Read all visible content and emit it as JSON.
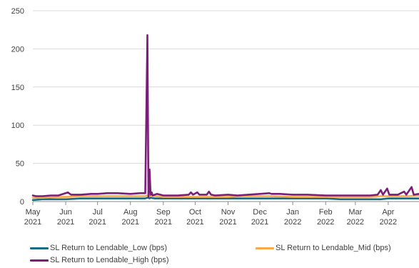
{
  "chart_data": {
    "type": "line",
    "title": "",
    "xlabel": "",
    "ylabel": "",
    "ylim": [
      0,
      250
    ],
    "yticks": [
      0,
      50,
      100,
      150,
      200,
      250
    ],
    "xlim": [
      "2021-05-01",
      "2022-04-30"
    ],
    "x_ticks": [
      {
        "date": "2021-05-01",
        "month": "May",
        "year": "2021"
      },
      {
        "date": "2021-06-01",
        "month": "Jun",
        "year": "2021"
      },
      {
        "date": "2021-07-01",
        "month": "Jul",
        "year": "2021"
      },
      {
        "date": "2021-08-01",
        "month": "Aug",
        "year": "2021"
      },
      {
        "date": "2021-09-01",
        "month": "Sep",
        "year": "2021"
      },
      {
        "date": "2021-10-01",
        "month": "Oct",
        "year": "2021"
      },
      {
        "date": "2021-11-01",
        "month": "Nov",
        "year": "2021"
      },
      {
        "date": "2021-12-01",
        "month": "Dec",
        "year": "2021"
      },
      {
        "date": "2022-01-01",
        "month": "Jan",
        "year": "2022"
      },
      {
        "date": "2022-02-01",
        "month": "Feb",
        "year": "2022"
      },
      {
        "date": "2022-03-01",
        "month": "Mar",
        "year": "2022"
      },
      {
        "date": "2022-04-01",
        "month": "Apr",
        "year": "2022"
      }
    ],
    "grid": "horizontal",
    "legend_position": "bottom",
    "series": [
      {
        "name": "SL Return to Lendable_Low (bps)",
        "color": "#1b6b80",
        "points": [
          [
            "2021-05-01",
            2
          ],
          [
            "2021-05-10",
            3
          ],
          [
            "2021-05-25",
            3
          ],
          [
            "2021-06-01",
            3
          ],
          [
            "2021-06-15",
            4
          ],
          [
            "2021-07-01",
            4
          ],
          [
            "2021-07-20",
            4
          ],
          [
            "2021-08-01",
            4
          ],
          [
            "2021-08-15",
            4
          ],
          [
            "2021-08-17",
            5
          ],
          [
            "2021-08-18",
            5
          ],
          [
            "2021-08-19",
            4
          ],
          [
            "2021-08-20",
            5
          ],
          [
            "2021-08-24",
            4
          ],
          [
            "2021-09-01",
            4
          ],
          [
            "2021-09-15",
            4
          ],
          [
            "2021-10-01",
            4
          ],
          [
            "2021-10-15",
            4
          ],
          [
            "2021-11-01",
            4
          ],
          [
            "2021-11-15",
            4
          ],
          [
            "2021-12-01",
            4
          ],
          [
            "2021-12-10",
            4
          ],
          [
            "2022-01-01",
            4
          ],
          [
            "2022-01-15",
            4
          ],
          [
            "2022-02-01",
            4
          ],
          [
            "2022-02-15",
            3
          ],
          [
            "2022-03-01",
            3
          ],
          [
            "2022-03-15",
            3
          ],
          [
            "2022-03-25",
            3
          ],
          [
            "2022-04-01",
            4
          ],
          [
            "2022-04-10",
            4
          ],
          [
            "2022-04-20",
            4
          ],
          [
            "2022-04-30",
            4
          ]
        ]
      },
      {
        "name": "SL Return to Lendable_Mid (bps)",
        "color": "#f5a94a",
        "points": [
          [
            "2021-05-01",
            5
          ],
          [
            "2021-05-10",
            5
          ],
          [
            "2021-05-25",
            6
          ],
          [
            "2021-06-01",
            6
          ],
          [
            "2021-06-15",
            7
          ],
          [
            "2021-07-01",
            7
          ],
          [
            "2021-07-20",
            7
          ],
          [
            "2021-08-01",
            7
          ],
          [
            "2021-08-15",
            7
          ],
          [
            "2021-08-17",
            8
          ],
          [
            "2021-08-18",
            8
          ],
          [
            "2021-08-19",
            7
          ],
          [
            "2021-08-20",
            8
          ],
          [
            "2021-08-24",
            7
          ],
          [
            "2021-09-01",
            6
          ],
          [
            "2021-09-15",
            6
          ],
          [
            "2021-10-01",
            6
          ],
          [
            "2021-10-15",
            6
          ],
          [
            "2021-11-01",
            6
          ],
          [
            "2021-11-15",
            7
          ],
          [
            "2021-12-01",
            7
          ],
          [
            "2021-12-10",
            7
          ],
          [
            "2022-01-01",
            6
          ],
          [
            "2022-01-15",
            6
          ],
          [
            "2022-02-01",
            6
          ],
          [
            "2022-02-15",
            6
          ],
          [
            "2022-03-01",
            6
          ],
          [
            "2022-03-15",
            6
          ],
          [
            "2022-03-25",
            7
          ],
          [
            "2022-04-01",
            7
          ],
          [
            "2022-04-10",
            7
          ],
          [
            "2022-04-20",
            7
          ],
          [
            "2022-04-30",
            8
          ]
        ]
      },
      {
        "name": "SL Return to Lendable_High (bps)",
        "color": "#7b1e7a",
        "points": [
          [
            "2021-05-01",
            8
          ],
          [
            "2021-05-04",
            7
          ],
          [
            "2021-05-10",
            7
          ],
          [
            "2021-05-18",
            8
          ],
          [
            "2021-05-25",
            8
          ],
          [
            "2021-06-01",
            11
          ],
          [
            "2021-06-03",
            12
          ],
          [
            "2021-06-06",
            9
          ],
          [
            "2021-06-15",
            9
          ],
          [
            "2021-06-25",
            10
          ],
          [
            "2021-07-01",
            10
          ],
          [
            "2021-07-10",
            11
          ],
          [
            "2021-07-20",
            11
          ],
          [
            "2021-08-01",
            10
          ],
          [
            "2021-08-10",
            11
          ],
          [
            "2021-08-15",
            11
          ],
          [
            "2021-08-17",
            218
          ],
          [
            "2021-08-18",
            6
          ],
          [
            "2021-08-19",
            42
          ],
          [
            "2021-08-20",
            9
          ],
          [
            "2021-08-21",
            12
          ],
          [
            "2021-08-22",
            8
          ],
          [
            "2021-08-26",
            10
          ],
          [
            "2021-08-29",
            9
          ],
          [
            "2021-09-01",
            8
          ],
          [
            "2021-09-15",
            8
          ],
          [
            "2021-09-25",
            9
          ],
          [
            "2021-09-27",
            12
          ],
          [
            "2021-09-29",
            9
          ],
          [
            "2021-10-03",
            12
          ],
          [
            "2021-10-05",
            9
          ],
          [
            "2021-10-12",
            9
          ],
          [
            "2021-10-14",
            13
          ],
          [
            "2021-10-16",
            9
          ],
          [
            "2021-10-20",
            8
          ],
          [
            "2021-11-01",
            9
          ],
          [
            "2021-11-10",
            8
          ],
          [
            "2021-11-20",
            9
          ],
          [
            "2021-12-01",
            10
          ],
          [
            "2021-12-10",
            11
          ],
          [
            "2021-12-12",
            10
          ],
          [
            "2021-12-20",
            10
          ],
          [
            "2022-01-01",
            9
          ],
          [
            "2022-01-15",
            9
          ],
          [
            "2022-02-01",
            8
          ],
          [
            "2022-02-15",
            8
          ],
          [
            "2022-03-01",
            8
          ],
          [
            "2022-03-15",
            8
          ],
          [
            "2022-03-22",
            9
          ],
          [
            "2022-03-25",
            15
          ],
          [
            "2022-03-27",
            9
          ],
          [
            "2022-03-31",
            17
          ],
          [
            "2022-04-02",
            9
          ],
          [
            "2022-04-10",
            9
          ],
          [
            "2022-04-16",
            13
          ],
          [
            "2022-04-18",
            9
          ],
          [
            "2022-04-23",
            19
          ],
          [
            "2022-04-25",
            9
          ],
          [
            "2022-04-30",
            10
          ]
        ]
      }
    ]
  }
}
